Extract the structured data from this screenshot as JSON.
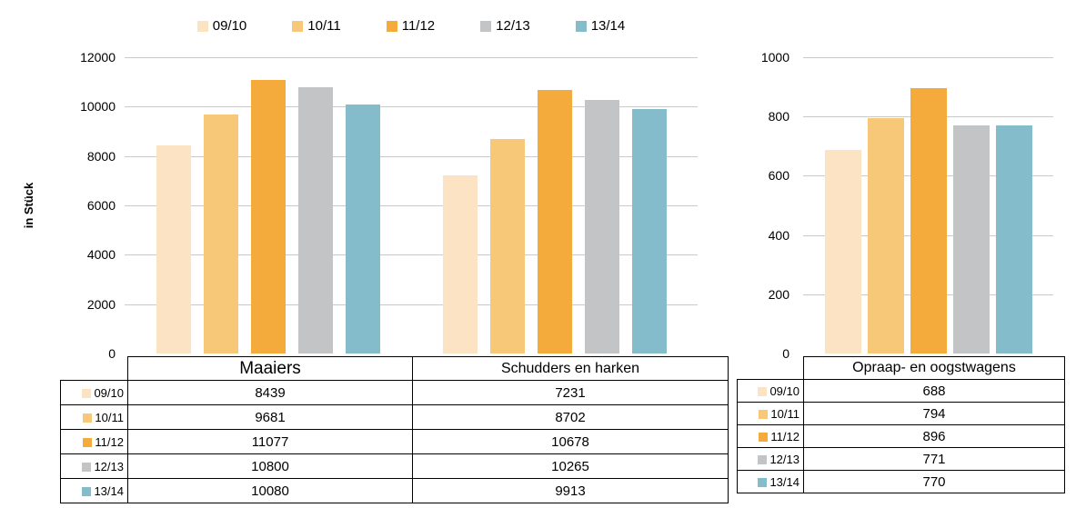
{
  "legend": {
    "position": "top",
    "items": [
      {
        "label": "09/10",
        "color": "#FBE3C3"
      },
      {
        "label": "10/11",
        "color": "#F7C878"
      },
      {
        "label": "11/12",
        "color": "#F5AA3C"
      },
      {
        "label": "12/13",
        "color": "#C3C4C5"
      },
      {
        "label": "13/14",
        "color": "#84BCCB"
      }
    ]
  },
  "chart_data": [
    {
      "type": "bar",
      "title": "",
      "ylabel": "in Stück",
      "xlabel": "",
      "ylim": [
        0,
        12000
      ],
      "yticks": [
        0,
        2000,
        4000,
        6000,
        8000,
        10000,
        12000
      ],
      "grid": true,
      "legend_position": "top",
      "categories": [
        "Maaiers",
        "Schudders en harken"
      ],
      "series": [
        {
          "name": "09/10",
          "color": "#FBE3C3",
          "values": [
            8439,
            7231
          ]
        },
        {
          "name": "10/11",
          "color": "#F7C878",
          "values": [
            9681,
            8702
          ]
        },
        {
          "name": "11/12",
          "color": "#F5AA3C",
          "values": [
            11077,
            10678
          ]
        },
        {
          "name": "12/13",
          "color": "#C3C4C5",
          "values": [
            10800,
            10265
          ]
        },
        {
          "name": "13/14",
          "color": "#84BCCB",
          "values": [
            10080,
            9913
          ]
        }
      ]
    },
    {
      "type": "bar",
      "title": "",
      "ylabel": "",
      "xlabel": "",
      "ylim": [
        0,
        1000
      ],
      "yticks": [
        0,
        200,
        400,
        600,
        800,
        1000
      ],
      "grid": true,
      "legend_position": "none",
      "categories": [
        "Opraap- en oogstwagens"
      ],
      "series": [
        {
          "name": "09/10",
          "color": "#FBE3C3",
          "values": [
            688
          ]
        },
        {
          "name": "10/11",
          "color": "#F7C878",
          "values": [
            794
          ]
        },
        {
          "name": "11/12",
          "color": "#F5AA3C",
          "values": [
            896
          ]
        },
        {
          "name": "12/13",
          "color": "#C3C4C5",
          "values": [
            771
          ]
        },
        {
          "name": "13/14",
          "color": "#84BCCB",
          "values": [
            770
          ]
        }
      ]
    }
  ],
  "tables": [
    {
      "columns": [
        "Maaiers",
        "Schudders en harken"
      ],
      "rows": [
        {
          "label": "09/10",
          "values": [
            "8439",
            "7231"
          ]
        },
        {
          "label": "10/11",
          "values": [
            "9681",
            "8702"
          ]
        },
        {
          "label": "11/12",
          "values": [
            "11077",
            "10678"
          ]
        },
        {
          "label": "12/13",
          "values": [
            "10800",
            "10265"
          ]
        },
        {
          "label": "13/14",
          "values": [
            "10080",
            "9913"
          ]
        }
      ]
    },
    {
      "columns": [
        "Opraap- en oogstwagens"
      ],
      "rows": [
        {
          "label": "09/10",
          "values": [
            "688"
          ]
        },
        {
          "label": "10/11",
          "values": [
            "794"
          ]
        },
        {
          "label": "11/12",
          "values": [
            "896"
          ]
        },
        {
          "label": "12/13",
          "values": [
            "771"
          ]
        },
        {
          "label": "13/14",
          "values": [
            "770"
          ]
        }
      ]
    }
  ],
  "colors": {
    "gridline": "#C9C9C9",
    "table_border": "#000000",
    "background": "#FFFFFF"
  }
}
